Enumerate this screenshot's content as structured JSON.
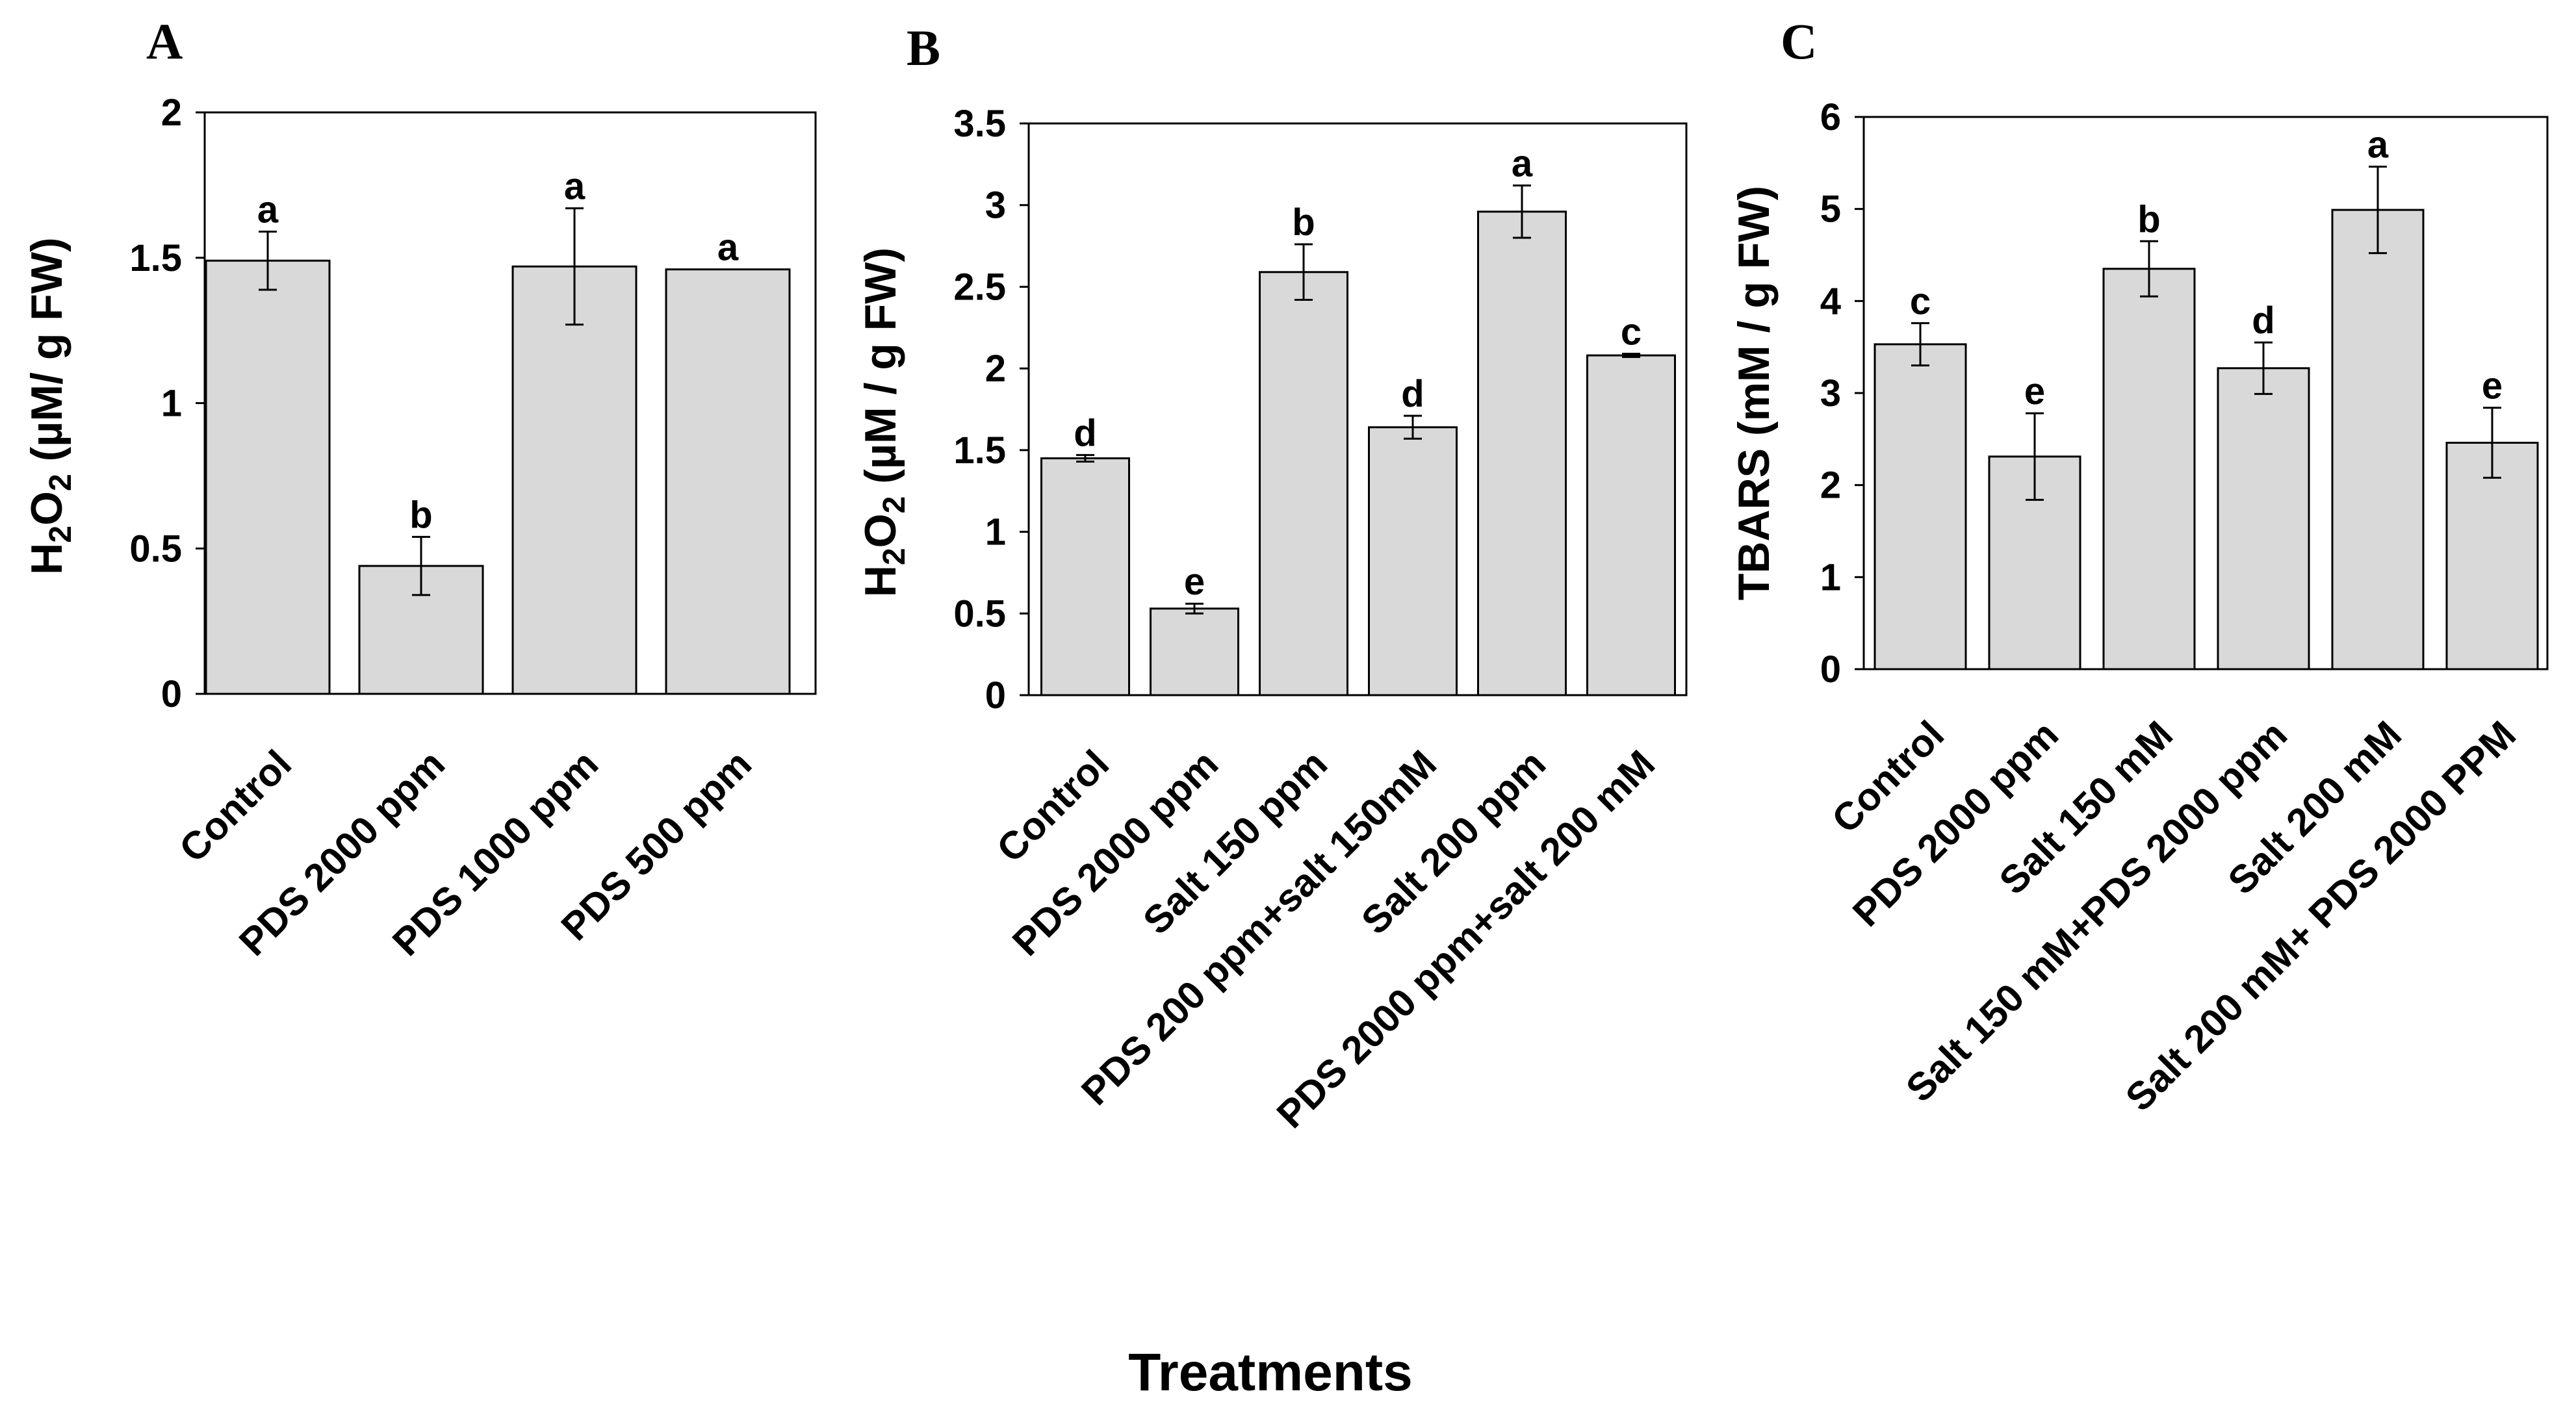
{
  "chart_data": [
    {
      "type": "bar",
      "panel_label": "A",
      "ylabel_parts": {
        "pre": "H",
        "sub1": "2",
        "mid": "O",
        "sub2": "2",
        "post": " (µM/ g FW)"
      },
      "ylim": [
        0,
        2
      ],
      "yticks": [
        "0",
        "0.5",
        "1",
        "1.5",
        "2"
      ],
      "categories": [
        "Control",
        "PDS 2000 ppm",
        "PDS 1000 ppm",
        "PDS 500 ppm"
      ],
      "values": [
        1.49,
        0.44,
        1.47,
        1.46
      ],
      "errors": [
        0.1,
        0.1,
        0.2,
        0.0
      ],
      "letters": [
        "a",
        "b",
        "a",
        "a"
      ],
      "bar_color": "#d9d9d9"
    },
    {
      "type": "bar",
      "panel_label": "B",
      "ylabel_parts": {
        "pre": "H",
        "sub1": "2",
        "mid": "O",
        "sub2": "2",
        "post": " (µM / g FW)"
      },
      "ylim": [
        0,
        3.5
      ],
      "yticks": [
        "0",
        "0.5",
        "1",
        "1.5",
        "2",
        "2.5",
        "3",
        "3.5"
      ],
      "categories": [
        "Control",
        "PDS 2000 ppm",
        "Salt 150 ppm",
        "PDS 200 ppm+salt 150mM",
        "Salt 200 ppm",
        "PDS 2000 ppm+salt 200 mM"
      ],
      "values": [
        1.45,
        0.53,
        2.59,
        1.64,
        2.96,
        2.08
      ],
      "errors": [
        0.02,
        0.03,
        0.17,
        0.07,
        0.16,
        0.01
      ],
      "letters": [
        "d",
        "e",
        "b",
        "d",
        "a",
        "c"
      ],
      "bar_color": "#d9d9d9"
    },
    {
      "type": "bar",
      "panel_label": "C",
      "ylabel_parts": {
        "pre": "TBARS (mM / g FW)"
      },
      "ylim": [
        0,
        6
      ],
      "yticks": [
        "0",
        "1",
        "2",
        "3",
        "4",
        "5",
        "6"
      ],
      "categories": [
        "Control",
        "PDS 2000 ppm",
        "Salt 150 mM",
        "Salt 150 mM+PDS 2000 ppm",
        "Salt 200 mM",
        "Salt 200 mM+ PDS 2000 PPM"
      ],
      "values": [
        3.53,
        2.31,
        4.35,
        3.27,
        4.99,
        2.46
      ],
      "errors": [
        0.23,
        0.47,
        0.3,
        0.28,
        0.47,
        0.38
      ],
      "letters": [
        "c",
        "e",
        "b",
        "d",
        "a",
        "e"
      ],
      "bar_color": "#d9d9d9"
    }
  ],
  "xlabel": "Treatments"
}
